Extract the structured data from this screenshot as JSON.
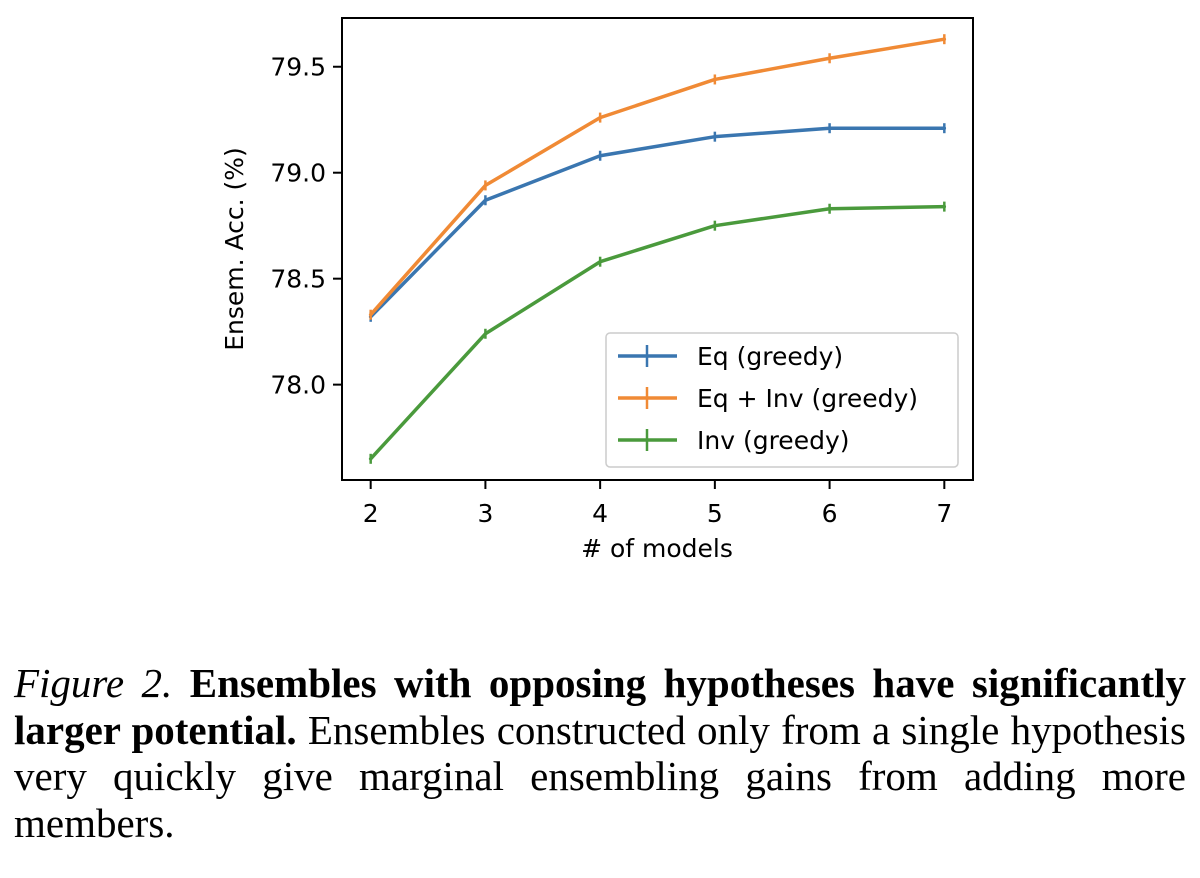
{
  "chart_data": {
    "type": "line",
    "title": "",
    "xlabel": "# of models",
    "ylabel": "Ensem. Acc. (%)",
    "x": [
      2,
      3,
      4,
      5,
      6,
      7
    ],
    "xlim": [
      1.75,
      7.25
    ],
    "ylim": [
      77.55,
      79.73
    ],
    "xticks": [
      2,
      3,
      4,
      5,
      6,
      7
    ],
    "xtick_labels": [
      "2",
      "3",
      "4",
      "5",
      "6",
      "7"
    ],
    "yticks": [
      78.0,
      78.5,
      79.0,
      79.5
    ],
    "ytick_labels": [
      "78.0",
      "78.5",
      "79.0",
      "79.5"
    ],
    "grid": false,
    "legend_position": "lower-right",
    "series": [
      {
        "name": "Eq (greedy)",
        "color": "#3a76b0",
        "values": [
          78.32,
          78.87,
          79.08,
          79.17,
          79.21,
          79.21
        ],
        "errors": [
          0.005,
          0.01,
          0.012,
          0.008,
          0.008,
          0.005
        ]
      },
      {
        "name": "Eq + Inv (greedy)",
        "color": "#f08a35",
        "values": [
          78.33,
          78.94,
          79.26,
          79.44,
          79.54,
          79.63
        ],
        "errors": [
          0.01,
          0.025,
          0.025,
          0.035,
          0.03,
          0.005
        ]
      },
      {
        "name": "Inv (greedy)",
        "color": "#4a9a3c",
        "values": [
          77.65,
          78.24,
          78.58,
          78.75,
          78.83,
          78.84
        ],
        "errors": [
          0.02,
          0.035,
          0.02,
          0.012,
          0.012,
          0.015
        ]
      }
    ]
  },
  "caption": {
    "label": "Figure 2.",
    "bold_text": "Ensembles with opposing hypotheses have signifi­cantly larger potential.",
    "text": "Ensembles constructed only from a sin­gle hypothesis very quickly give marginal ensembling gains from adding more members."
  }
}
